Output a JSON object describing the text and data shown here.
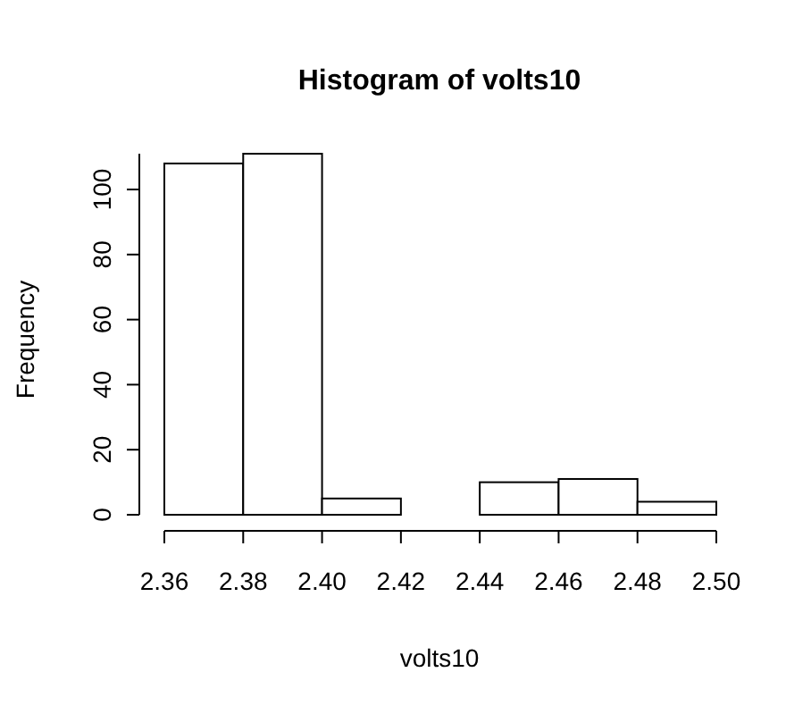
{
  "chart_data": {
    "type": "histogram",
    "title": "Histogram of volts10",
    "xlabel": "volts10",
    "ylabel": "Frequency",
    "bins": [
      2.36,
      2.38,
      2.4,
      2.42,
      2.44,
      2.46,
      2.48,
      2.5
    ],
    "values": [
      108,
      111,
      5,
      0,
      10,
      11,
      4
    ],
    "color": "#ffffff",
    "xlim": [
      2.36,
      2.5
    ],
    "ylim": [
      0,
      111
    ],
    "xticks": [
      {
        "value": 2.36,
        "label": "2.36"
      },
      {
        "value": 2.38,
        "label": "2.38"
      },
      {
        "value": 2.4,
        "label": "2.40"
      },
      {
        "value": 2.42,
        "label": "2.42"
      },
      {
        "value": 2.44,
        "label": "2.44"
      },
      {
        "value": 2.46,
        "label": "2.46"
      },
      {
        "value": 2.48,
        "label": "2.48"
      },
      {
        "value": 2.5,
        "label": "2.50"
      }
    ],
    "yticks": [
      0,
      20,
      40,
      60,
      80,
      100
    ],
    "grid": false
  }
}
